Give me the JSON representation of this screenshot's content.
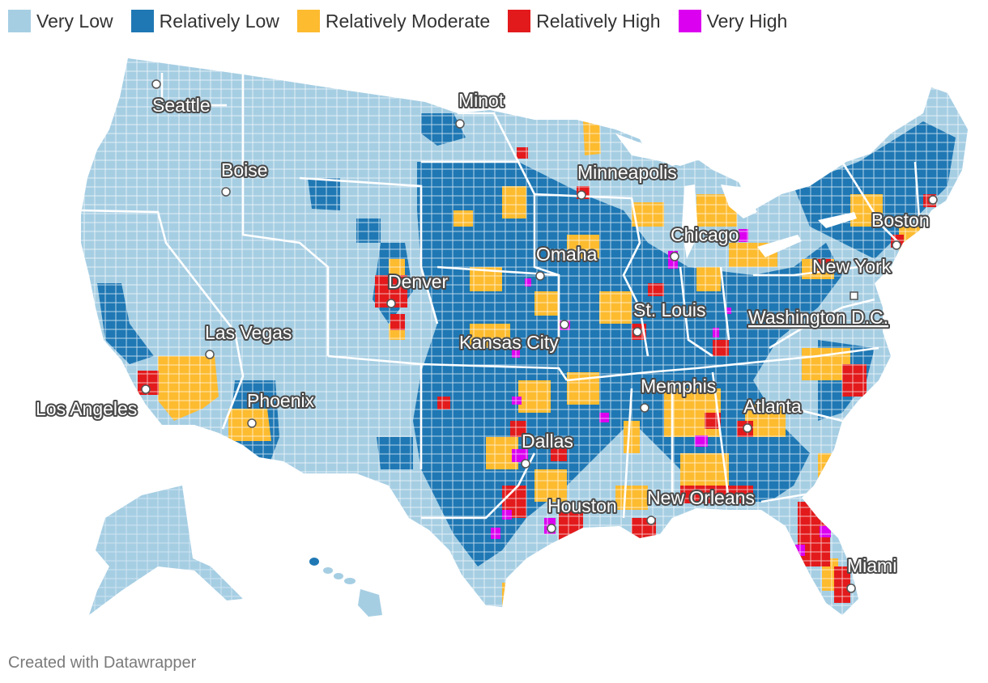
{
  "legend": [
    {
      "label": "Very Low",
      "color": "#a6cee3"
    },
    {
      "label": "Relatively Low",
      "color": "#1f78b4"
    },
    {
      "label": "Relatively Moderate",
      "color": "#fdbb2f"
    },
    {
      "label": "Relatively High",
      "color": "#e31a1c"
    },
    {
      "label": "Very High",
      "color": "#dc00f0"
    }
  ],
  "cities": [
    {
      "id": "seattle",
      "name": "Seattle"
    },
    {
      "id": "minot",
      "name": "Minot"
    },
    {
      "id": "boise",
      "name": "Boise"
    },
    {
      "id": "minneapolis",
      "name": "Minneapolis"
    },
    {
      "id": "boston",
      "name": "Boston"
    },
    {
      "id": "chicago",
      "name": "Chicago"
    },
    {
      "id": "omaha",
      "name": "Omaha"
    },
    {
      "id": "new-york",
      "name": "New York"
    },
    {
      "id": "denver",
      "name": "Denver"
    },
    {
      "id": "st-louis",
      "name": "St. Louis"
    },
    {
      "id": "washington",
      "name": "Washington D.C."
    },
    {
      "id": "las-vegas",
      "name": "Las Vegas"
    },
    {
      "id": "kansas-city",
      "name": "Kansas City"
    },
    {
      "id": "memphis",
      "name": "Memphis"
    },
    {
      "id": "phoenix",
      "name": "Phoenix"
    },
    {
      "id": "atlanta",
      "name": "Atlanta"
    },
    {
      "id": "los-angeles",
      "name": "Los Angeles"
    },
    {
      "id": "dallas",
      "name": "Dallas"
    },
    {
      "id": "houston",
      "name": "Houston"
    },
    {
      "id": "new-orleans",
      "name": "New Orleans"
    },
    {
      "id": "miami",
      "name": "Miami"
    }
  ],
  "footer": "Created with Datawrapper"
}
